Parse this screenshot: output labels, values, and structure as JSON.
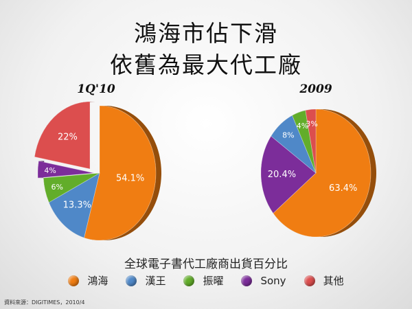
{
  "title": {
    "line1": "鴻海市佔下滑",
    "line2": "依舊為最大代工廠"
  },
  "legend_title": "全球電子書代工廠商出貨百分比",
  "source": "資料來源：DIGITIMES，2010/4",
  "colors": {
    "鴻海": "#f07d12",
    "漢王": "#4f88c8",
    "振曜": "#62ad2a",
    "Sony": "#7c2d9a",
    "其他": "#dc4e4e"
  },
  "chart_data": [
    {
      "type": "pie",
      "title": "1Q'10",
      "series": [
        {
          "name": "鴻海",
          "value": 54.1,
          "label": "54.1%"
        },
        {
          "name": "漢王",
          "value": 13.3,
          "label": "13.3%"
        },
        {
          "name": "振曜",
          "value": 6,
          "label": "6%"
        },
        {
          "name": "Sony",
          "value": 4,
          "label": "4%"
        },
        {
          "name": "其他",
          "value": 22,
          "label": "22%"
        }
      ]
    },
    {
      "type": "pie",
      "title": "2009",
      "series": [
        {
          "name": "鴻海",
          "value": 63.4,
          "label": "63.4%"
        },
        {
          "name": "Sony",
          "value": 20.4,
          "label": "20.4%"
        },
        {
          "name": "漢王",
          "value": 8,
          "label": "8%"
        },
        {
          "name": "振曜",
          "value": 4,
          "label": "4%"
        },
        {
          "name": "其他",
          "value": 3,
          "label": "3%"
        }
      ]
    }
  ],
  "legend": [
    {
      "name": "鴻海",
      "icon": "orange-dot-icon"
    },
    {
      "name": "漢王",
      "icon": "blue-dot-icon"
    },
    {
      "name": "振曜",
      "icon": "green-dot-icon"
    },
    {
      "name": "Sony",
      "icon": "purple-dot-icon"
    },
    {
      "name": "其他",
      "icon": "red-dot-icon"
    }
  ]
}
